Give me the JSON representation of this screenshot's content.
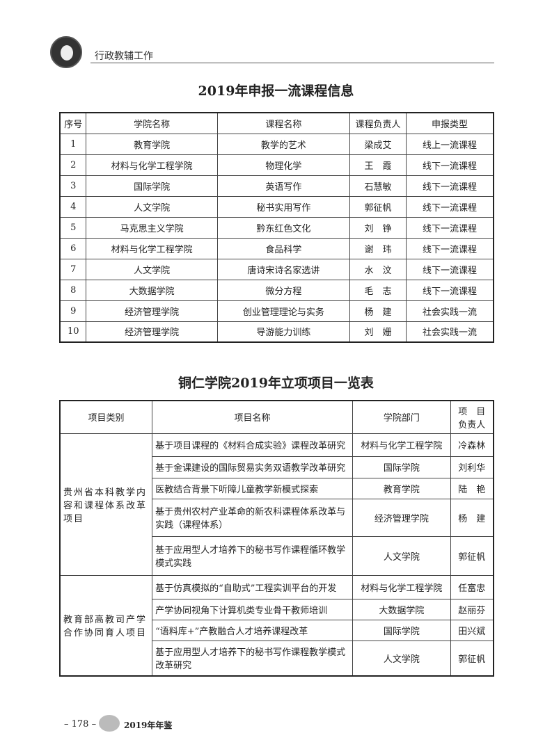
{
  "header": {
    "section": "行政教辅工作"
  },
  "table1": {
    "title": "2019年申报一流课程信息",
    "columns": [
      "序号",
      "学院名称",
      "课程名称",
      "课程负责人",
      "申报类型"
    ],
    "rows": [
      [
        "1",
        "教育学院",
        "教学的艺术",
        "梁成艾",
        "线上一流课程"
      ],
      [
        "2",
        "材料与化学工程学院",
        "物理化学",
        "王　霞",
        "线下一流课程"
      ],
      [
        "3",
        "国际学院",
        "英语写作",
        "石慧敏",
        "线下一流课程"
      ],
      [
        "4",
        "人文学院",
        "秘书实用写作",
        "郭征帆",
        "线下一流课程"
      ],
      [
        "5",
        "马克思主义学院",
        "黔东红色文化",
        "刘　铮",
        "线下一流课程"
      ],
      [
        "6",
        "材料与化学工程学院",
        "食品科学",
        "谢　玮",
        "线下一流课程"
      ],
      [
        "7",
        "人文学院",
        "唐诗宋诗名家选讲",
        "水　汶",
        "线下一流课程"
      ],
      [
        "8",
        "大数据学院",
        "微分方程",
        "毛　志",
        "线下一流课程"
      ],
      [
        "9",
        "经济管理学院",
        "创业管理理论与实务",
        "杨　建",
        "社会实践一流"
      ],
      [
        "10",
        "经济管理学院",
        "导游能力训练",
        "刘　姗",
        "社会实践一流"
      ]
    ]
  },
  "table2": {
    "title": "铜仁学院2019年立项项目一览表",
    "columns": [
      "项目类别",
      "项目名称",
      "学院部门",
      "项　目 负责人"
    ],
    "groups": [
      {
        "category": "贵州省本科教学内容和课程体系改革项目",
        "rows": [
          [
            "基于项目课程的《材料合成实验》课程改革研究",
            "材料与化学工程学院",
            "冷森林"
          ],
          [
            "基于金课建设的国际贸易实务双语教学改革研究",
            "国际学院",
            "刘利华"
          ],
          [
            "医教结合背景下听障儿童教学新模式探索",
            "教育学院",
            "陆　艳"
          ],
          [
            "基于贵州农村产业革命的新农科课程体系改革与实践（课程体系）",
            "经济管理学院",
            "杨　建"
          ],
          [
            "基于应用型人才培养下的秘书写作课程循环教学模式实践",
            "人文学院",
            "郭征帆"
          ]
        ]
      },
      {
        "category": "教育部高教司产学合作协同育人项目",
        "rows": [
          [
            "基于仿真模拟的“自助式”工程实训平台的开发",
            "材料与化学工程学院",
            "任富忠"
          ],
          [
            "产学协同视角下计算机类专业骨干教师培训",
            "大数据学院",
            "赵丽芬"
          ],
          [
            "“语料库+”产教融合人才培养课程改革",
            "国际学院",
            "田兴斌"
          ],
          [
            "基于应用型人才培养下的秘书写作课程教学模式改革研究",
            "人文学院",
            "郭征帆"
          ]
        ]
      }
    ]
  },
  "footer": {
    "page": "– 178 –",
    "yearbook": "2019年年鉴"
  }
}
